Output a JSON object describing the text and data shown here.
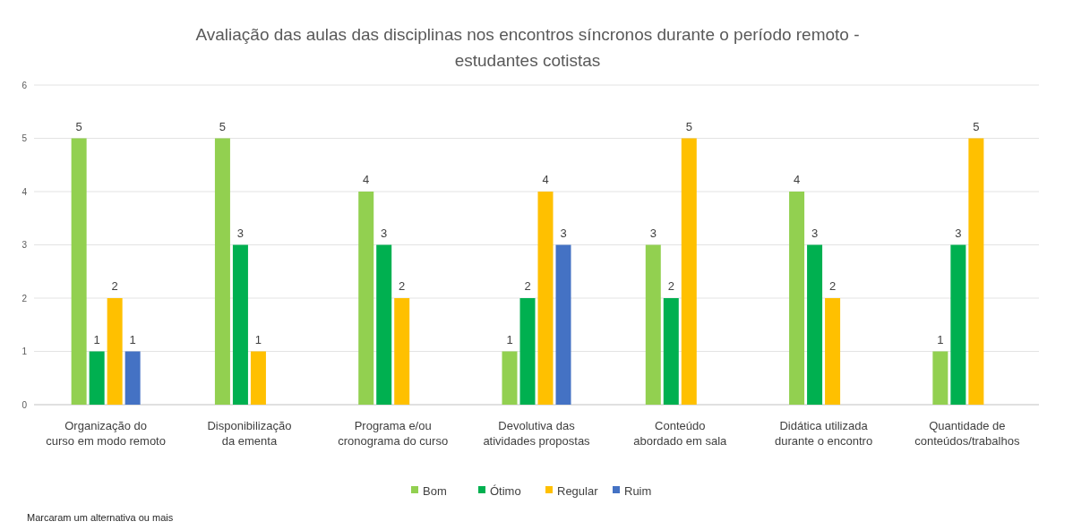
{
  "chart_data": {
    "type": "bar",
    "title": "Avaliação das aulas das disciplinas nos encontros síncronos durante o período remoto - estudantes cotistas",
    "categories": [
      "Organização do curso em modo remoto",
      "Disponibilização da ementa",
      "Programa e/ou cronograma do curso",
      "Devolutiva das atividades propostas",
      "Conteúdo abordado em sala",
      "Didática utilizada durante o encontro",
      "Quantidade de conteúdos/trabalhos"
    ],
    "series": [
      {
        "name": "Bom",
        "color": "#92d050",
        "values": [
          5,
          5,
          4,
          1,
          3,
          4,
          1
        ]
      },
      {
        "name": "Ótimo",
        "color": "#00b050",
        "values": [
          1,
          3,
          3,
          2,
          2,
          3,
          3
        ]
      },
      {
        "name": "Regular",
        "color": "#ffc000",
        "values": [
          2,
          1,
          2,
          4,
          5,
          2,
          5
        ]
      },
      {
        "name": "Ruim",
        "color": "#4472c4",
        "values": [
          1,
          null,
          null,
          3,
          null,
          null,
          null
        ]
      }
    ],
    "ylim": [
      0,
      6
    ],
    "yticks": [
      0,
      1,
      2,
      3,
      4,
      5,
      6
    ],
    "grid": "y",
    "legend": "bottom",
    "data_labels": true,
    "annotations": [
      "Marcaram um alternativa ou mais"
    ]
  }
}
